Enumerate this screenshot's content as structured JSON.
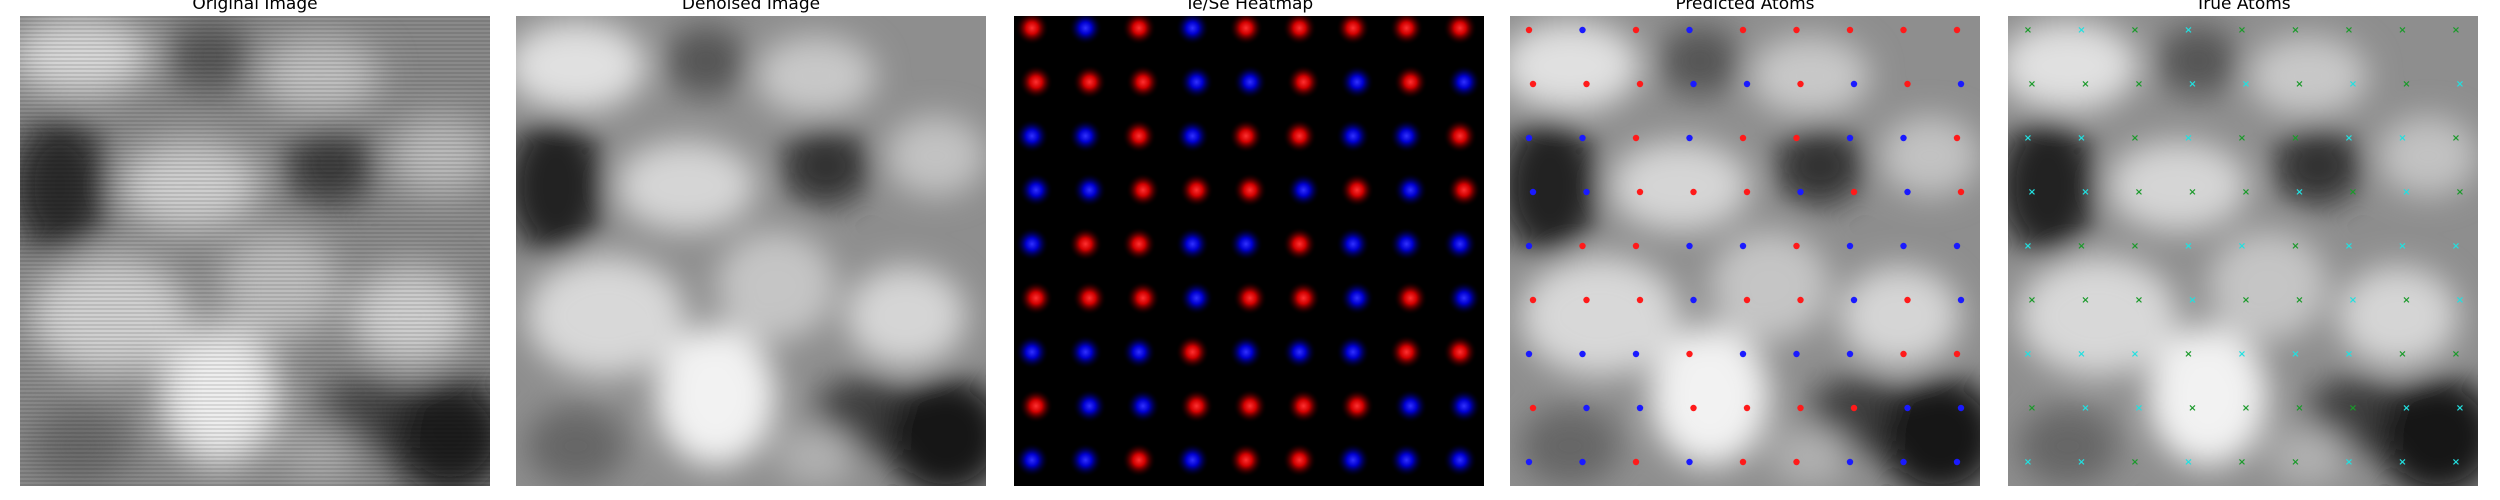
{
  "panels": [
    {
      "id": "original",
      "title": "Original Image"
    },
    {
      "id": "denoised",
      "title": "Denoised Image"
    },
    {
      "id": "heatmap",
      "title": "Te/Se Heatmap"
    },
    {
      "id": "predicted",
      "title": "Predicted Atoms"
    },
    {
      "id": "true",
      "title": "True Atoms"
    }
  ],
  "colors": {
    "te": "#ff1a1a",
    "se": "#1a1aff",
    "true_green": "#1a9a2a",
    "true_cyan": "#22e0e0",
    "heatmap_bg": "#000000"
  }
}
